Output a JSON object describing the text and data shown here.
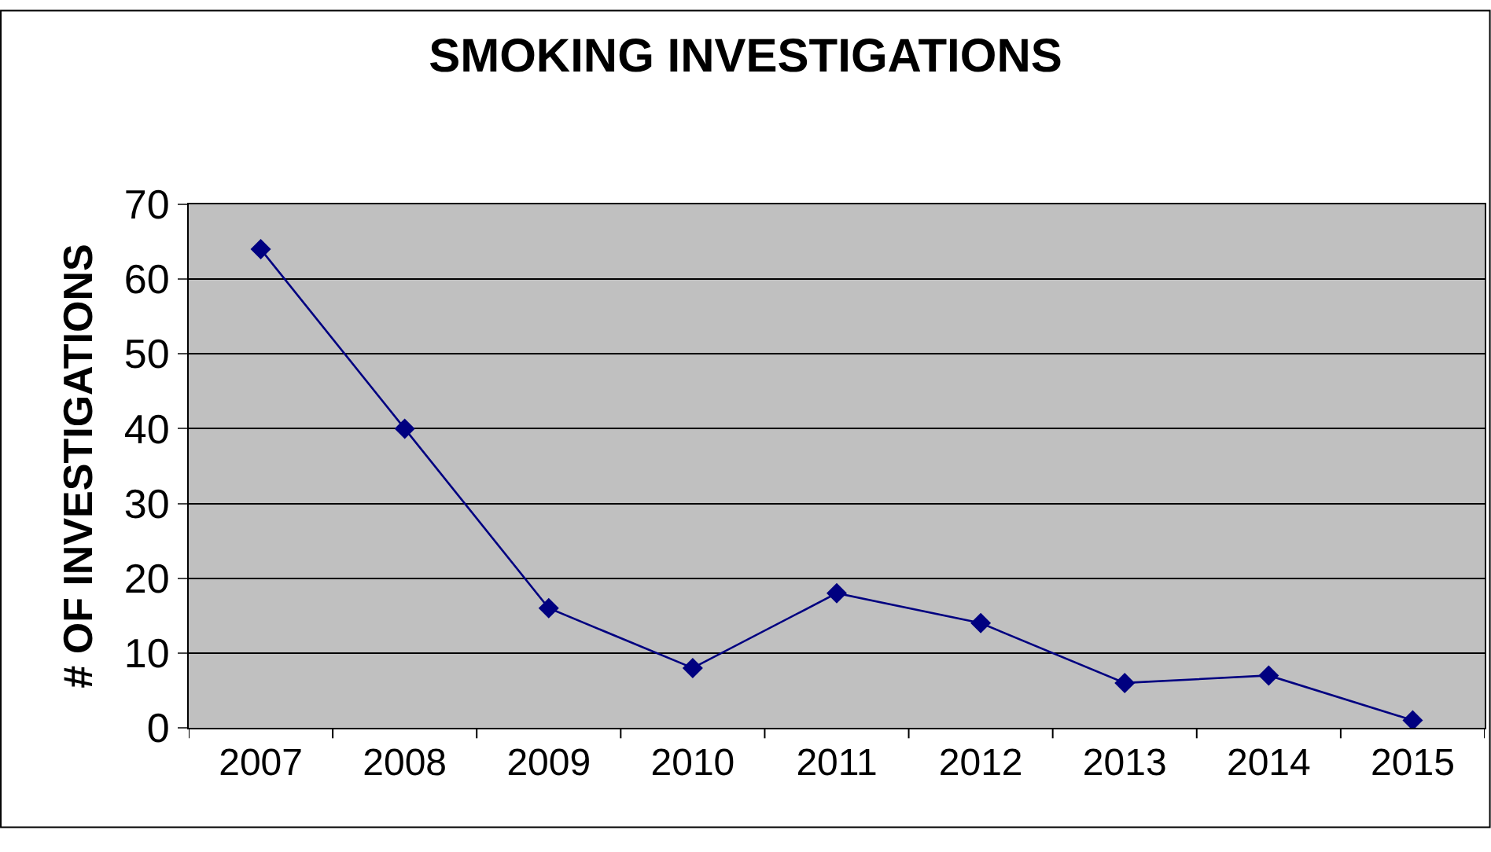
{
  "chart_data": {
    "type": "line",
    "title": "SMOKING INVESTIGATIONS",
    "ylabel": "# OF INVESTIGATIONS",
    "categories": [
      "2007",
      "2008",
      "2009",
      "2010",
      "2011",
      "2012",
      "2013",
      "2014",
      "2015"
    ],
    "series": [
      {
        "color": "#000080",
        "values": [
          64,
          40,
          16,
          8,
          18,
          14,
          6,
          7,
          1
        ]
      }
    ],
    "ylim": [
      0,
      70
    ],
    "yticks": [
      0,
      10,
      20,
      30,
      40,
      50,
      60,
      70
    ],
    "grid": "y",
    "marker": "diamond",
    "line_style": "solid"
  }
}
